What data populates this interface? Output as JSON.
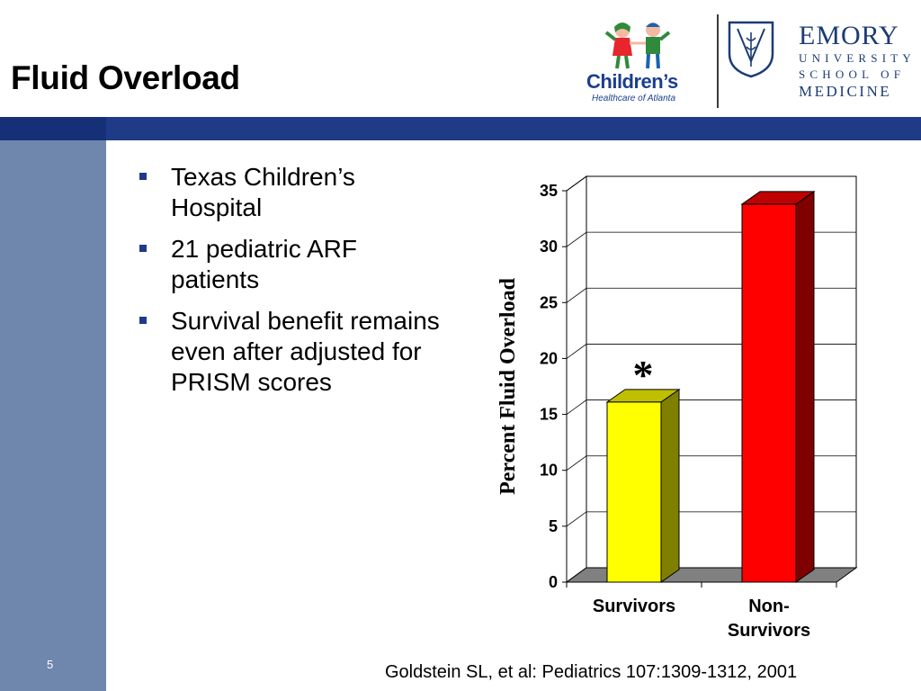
{
  "slide": {
    "title": "Fluid Overload",
    "page_number": "5",
    "bullets": [
      "Texas Children’s Hospital",
      "21 pediatric ARF patients",
      "Survival benefit remains even after adjusted for PRISM scores"
    ],
    "citation": "Goldstein SL, et al: Pediatrics 107:1309-1312, 2001"
  },
  "logos": {
    "childrens": {
      "name": "Children’s",
      "tagline": "Healthcare of Atlanta"
    },
    "emory": {
      "line1": "EMORY",
      "line2": "UNIVERSITY",
      "line3": "SCHOOL OF",
      "line4": "MEDICINE"
    }
  },
  "colors": {
    "band": "#1f3a86",
    "sidebar": "#6f86ad"
  },
  "chart_data": {
    "type": "bar",
    "categories": [
      "Survivors",
      "Non-Survivors"
    ],
    "category_lines": [
      [
        "Survivors"
      ],
      [
        "Non-",
        "Survivors"
      ]
    ],
    "values": [
      16.1,
      33.8
    ],
    "colors": [
      "#ffff00",
      "#ff0000"
    ],
    "side_colors": [
      "#7f7f00",
      "#800000"
    ],
    "top_colors": [
      "#bfbf00",
      "#bf0000"
    ],
    "ylabel": "Percent Fluid Overload",
    "ylim": [
      0,
      35
    ],
    "yticks": [
      0,
      5,
      10,
      15,
      20,
      25,
      30,
      35
    ],
    "annotation": "*",
    "grid": true
  }
}
